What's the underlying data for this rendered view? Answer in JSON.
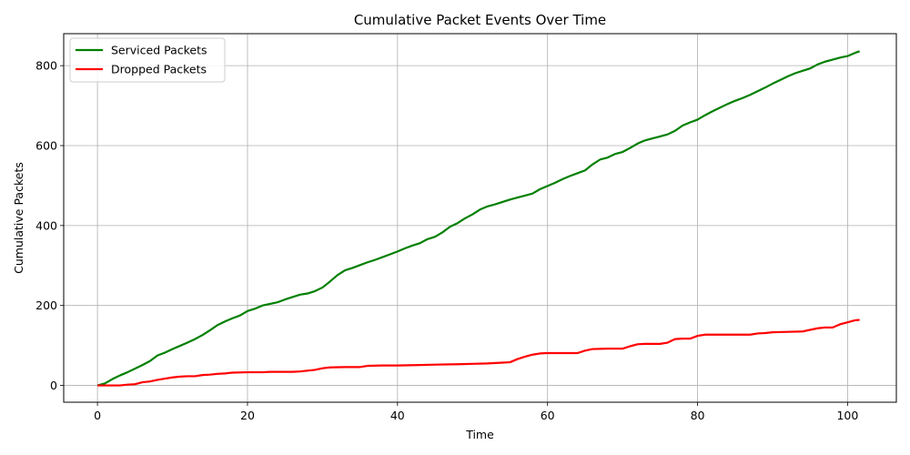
{
  "chart_data": {
    "type": "line",
    "title": "Cumulative Packet Events Over Time",
    "xlabel": "Time",
    "ylabel": "Cumulative Packets",
    "xlim": [
      -4.5,
      106.5
    ],
    "ylim": [
      -42,
      880
    ],
    "xticks": [
      0,
      20,
      40,
      60,
      80,
      100
    ],
    "yticks": [
      0,
      200,
      400,
      600,
      800
    ],
    "grid": true,
    "legend_position": "upper-left",
    "series": [
      {
        "name": "Serviced Packets",
        "color": "#008000",
        "x": [
          0,
          1,
          2,
          3,
          4,
          5,
          6,
          7,
          8,
          9,
          10,
          11,
          12,
          13,
          14,
          15,
          16,
          17,
          18,
          19,
          20,
          21,
          22,
          23,
          24,
          25,
          26,
          27,
          28,
          29,
          30,
          31,
          32,
          33,
          34,
          35,
          36,
          37,
          38,
          39,
          40,
          41,
          42,
          43,
          44,
          45,
          46,
          47,
          48,
          49,
          50,
          51,
          52,
          53,
          54,
          55,
          56,
          57,
          58,
          59,
          60,
          61,
          62,
          63,
          64,
          65,
          66,
          67,
          68,
          69,
          70,
          71,
          72,
          73,
          74,
          75,
          76,
          77,
          78,
          79,
          80,
          81,
          82,
          83,
          84,
          85,
          86,
          87,
          88,
          89,
          90,
          91,
          92,
          93,
          94,
          95,
          96,
          97,
          98,
          99,
          100,
          101,
          101.6
        ],
        "y": [
          0,
          5,
          16,
          25,
          33,
          42,
          51,
          61,
          75,
          82,
          91,
          99,
          107,
          116,
          126,
          138,
          151,
          160,
          168,
          175,
          186,
          192,
          200,
          204,
          208,
          215,
          221,
          227,
          230,
          236,
          245,
          260,
          276,
          288,
          294,
          301,
          308,
          314,
          321,
          328,
          335,
          343,
          350,
          356,
          366,
          372,
          383,
          397,
          406,
          418,
          428,
          440,
          448,
          453,
          459,
          465,
          470,
          475,
          480,
          491,
          499,
          507,
          516,
          524,
          531,
          538,
          553,
          565,
          570,
          579,
          584,
          594,
          605,
          613,
          618,
          623,
          628,
          637,
          650,
          658,
          665,
          676,
          686,
          695,
          704,
          712,
          719,
          727,
          736,
          745,
          755,
          764,
          773,
          781,
          787,
          793,
          803,
          810,
          815,
          820,
          824,
          832,
          836
        ]
      },
      {
        "name": "Dropped Packets",
        "color": "#ff0000",
        "x": [
          0,
          2,
          3,
          4,
          5,
          6,
          7,
          8,
          9,
          10,
          11,
          12,
          13,
          14,
          15,
          16,
          17,
          18,
          20,
          22,
          23,
          25,
          26,
          27,
          28,
          29,
          30,
          31,
          33,
          35,
          36,
          38,
          40,
          43,
          45,
          48,
          50,
          52,
          54,
          55,
          56,
          57,
          58,
          59,
          60,
          62,
          64,
          65,
          66,
          68,
          70,
          71,
          72,
          73,
          75,
          76,
          77,
          78,
          79,
          80,
          81,
          83,
          85,
          87,
          88,
          89,
          90,
          92,
          94,
          95,
          96,
          97,
          98,
          99,
          100,
          101,
          101.6
        ],
        "y": [
          0,
          0,
          0,
          2,
          3,
          8,
          10,
          14,
          17,
          20,
          22,
          23,
          23,
          26,
          27,
          29,
          30,
          32,
          33,
          33,
          34,
          34,
          34,
          35,
          37,
          39,
          43,
          45,
          46,
          46,
          49,
          50,
          50,
          51,
          52,
          53,
          54,
          55,
          57,
          58,
          66,
          72,
          77,
          80,
          81,
          81,
          81,
          87,
          91,
          92,
          92,
          98,
          103,
          104,
          104,
          107,
          116,
          117,
          117,
          124,
          127,
          127,
          127,
          127,
          130,
          131,
          133,
          134,
          135,
          139,
          143,
          145,
          145,
          153,
          158,
          163,
          164
        ]
      }
    ]
  }
}
